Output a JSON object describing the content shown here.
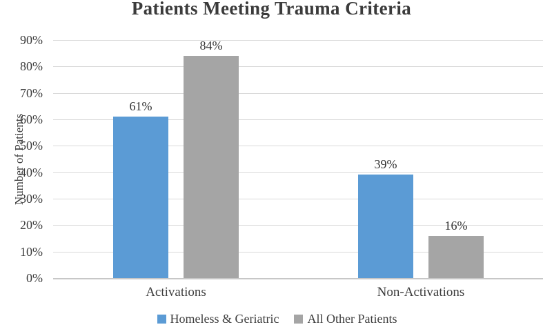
{
  "chart_data": {
    "type": "bar",
    "title": "Patients Meeting Trauma Criteria",
    "ylabel": "Number of Patients",
    "xlabel": "",
    "categories": [
      "Activations",
      "Non-Activations"
    ],
    "series": [
      {
        "name": "Homeless & Geriatric",
        "color": "#5B9BD5",
        "values": [
          61,
          39
        ],
        "labels": [
          "61%",
          "39%"
        ]
      },
      {
        "name": "All Other Patients",
        "color": "#A5A5A5",
        "values": [
          84,
          16
        ],
        "labels": [
          "84%",
          "16%"
        ]
      }
    ],
    "y_ticks": [
      "0%",
      "10%",
      "20%",
      "30%",
      "40%",
      "50%",
      "60%",
      "70%",
      "80%",
      "90%"
    ],
    "ylim": [
      0,
      90
    ],
    "grid": true,
    "legend_position": "bottom",
    "colors": {
      "grid": "#D9D9D9",
      "axis_line": "#C7C7C7",
      "text": "#3D3D3D",
      "title": "#3B3B3B"
    }
  }
}
